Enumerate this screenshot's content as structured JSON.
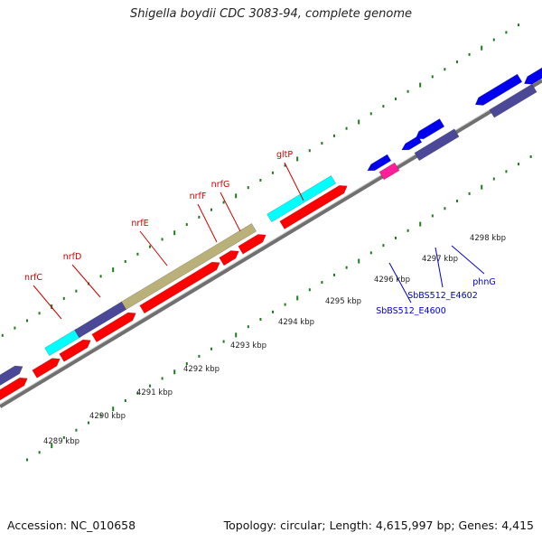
{
  "title": "Shigella boydii CDC 3083-94, complete genome",
  "footer": {
    "accession": "Accession: NC_010658",
    "stats": "Topology: circular; Length: 4,615,997 bp; Genes: 4,415"
  },
  "colors": {
    "red_gene": "#ff0000",
    "purple_gene": "#4b4898",
    "cyan_gene": "#00ffff",
    "olive_gene": "#b9b07a",
    "blue_gene": "#0000ee",
    "magenta_gene": "#ff1e9a",
    "backbone": "#8c8c8c",
    "tick_green": "#1f7a1f",
    "label_red": "#cc0000",
    "label_blue": "#0000cc"
  },
  "scale_labels": [
    "4289 kbp",
    "4290 kbp",
    "4291 kbp",
    "4292 kbp",
    "4293 kbp",
    "4294 kbp",
    "4295 kbp",
    "4296 kbp",
    "4297 kbp",
    "4298 kbp"
  ],
  "gene_labels": [
    "nrfC",
    "nrfD",
    "nrfE",
    "nrfF",
    "nrfG",
    "gltP",
    "SbBS512_E4600",
    "SbBS512_E4602",
    "phnG"
  ]
}
